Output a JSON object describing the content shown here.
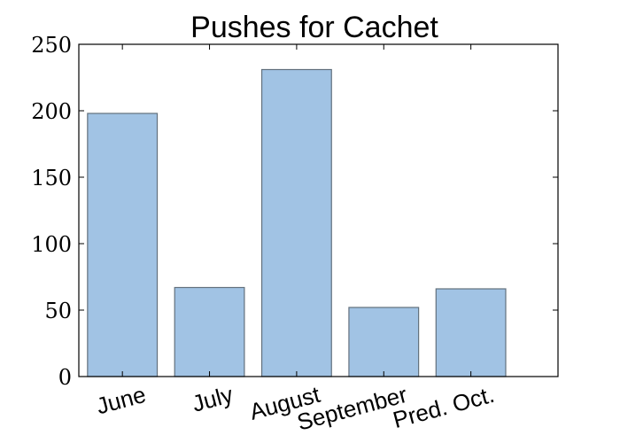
{
  "chart_data": {
    "type": "bar",
    "title": "Pushes for Cachet",
    "xlabel": "",
    "ylabel": "",
    "categories": [
      "June",
      "July",
      "August",
      "September",
      "Pred. Oct."
    ],
    "values": [
      198,
      67,
      231,
      52,
      66
    ],
    "ylim": [
      0,
      250
    ],
    "yticks": [
      0,
      50,
      100,
      150,
      200,
      250
    ],
    "bar_color": "#a1c3e4",
    "bar_edge_color": "#62707d",
    "grid": false,
    "legend": "none"
  }
}
